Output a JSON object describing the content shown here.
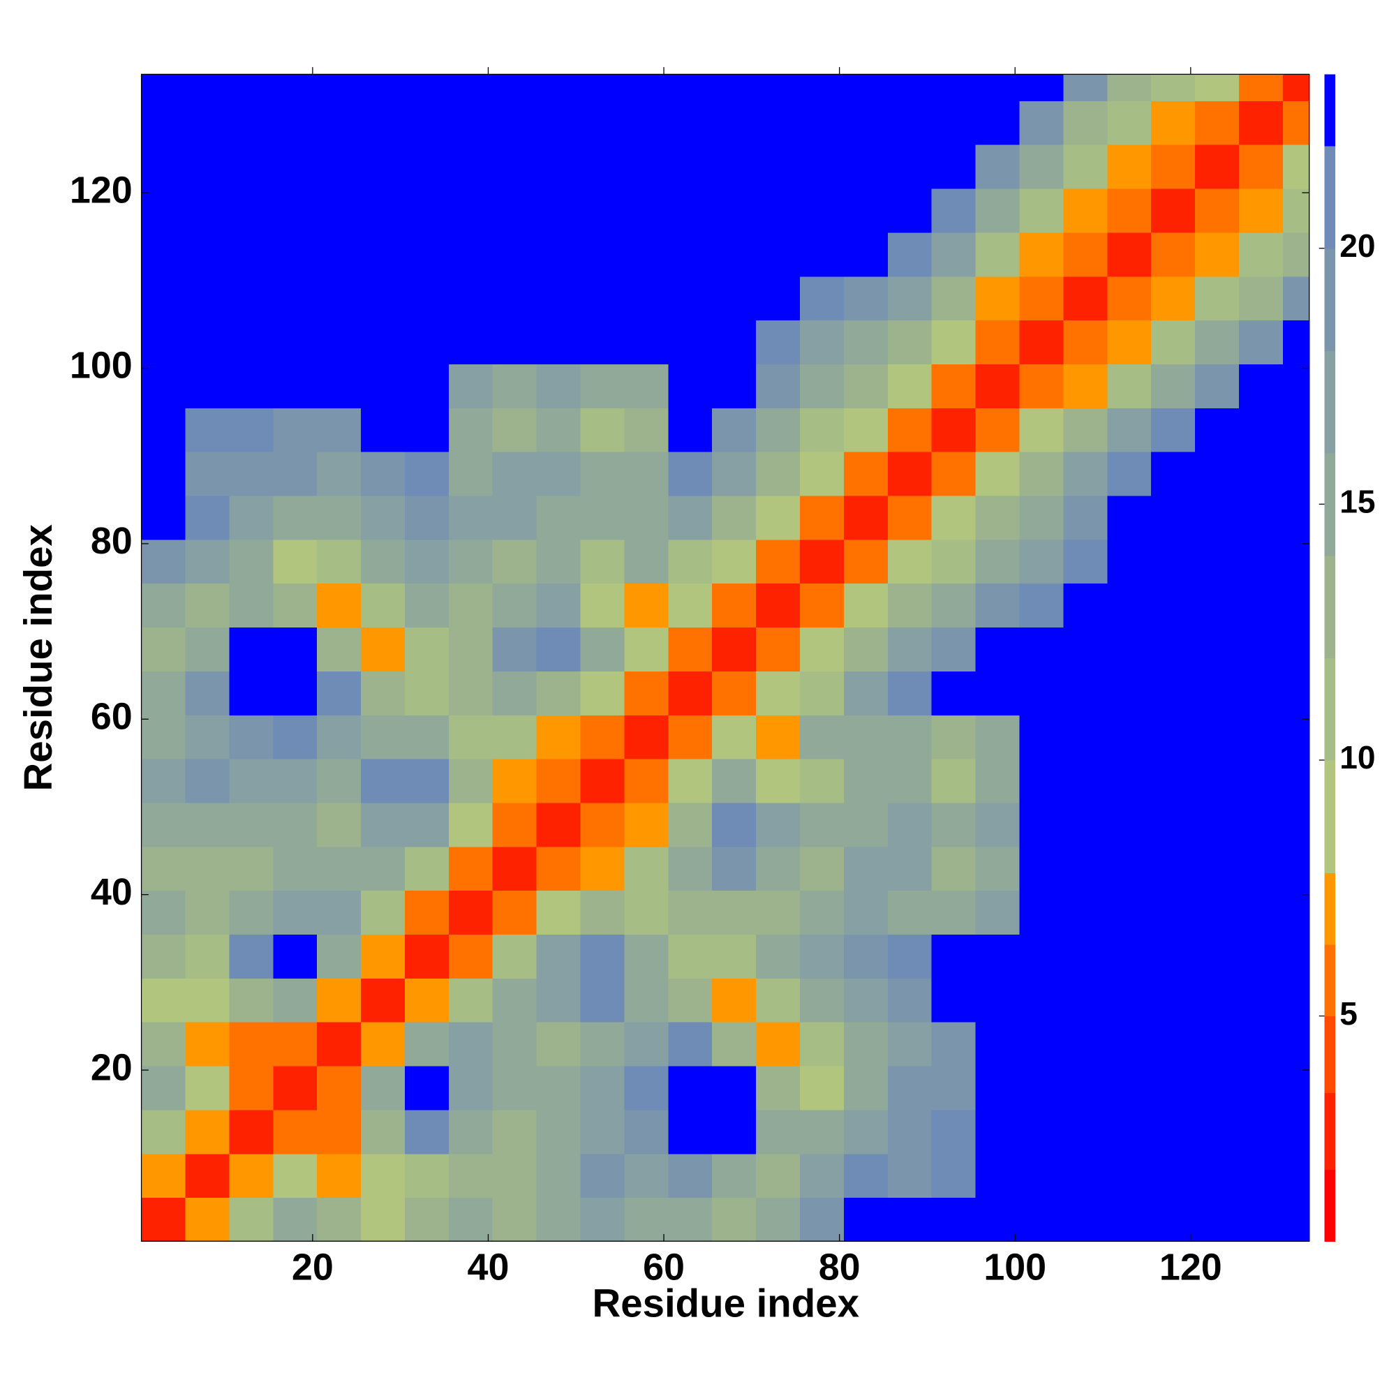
{
  "chart_data": {
    "type": "heatmap",
    "xlabel": "Residue index",
    "ylabel": "Residue index",
    "xbins": [
      0.5,
      5.5,
      10.5,
      15.5,
      20.5,
      25.5,
      30.5,
      35.5,
      40.5,
      45.5,
      50.5,
      55.5,
      60.5,
      65.5,
      70.5,
      75.5,
      80.5,
      85.5,
      90.5,
      95.5,
      100.5,
      105.5,
      110.5,
      115.5,
      120.5,
      125.5,
      130.5,
      133.5
    ],
    "ybins": [
      0.5,
      5.5,
      10.5,
      15.5,
      20.5,
      25.5,
      30.5,
      35.5,
      40.5,
      45.5,
      50.5,
      55.5,
      60.5,
      65.5,
      70.5,
      75.5,
      80.5,
      85.5,
      90.5,
      95.5,
      100.5,
      105.5,
      110.5,
      115.5,
      120.5,
      125.5,
      130.5,
      133.5
    ],
    "xlim": [
      0.5,
      133.5
    ],
    "ylim": [
      0.5,
      133.5
    ],
    "xticks": [
      20,
      40,
      60,
      80,
      100,
      120
    ],
    "yticks": [
      20,
      40,
      60,
      80,
      100,
      120
    ],
    "z": [
      [
        3,
        7,
        11,
        14,
        12,
        8,
        12,
        14,
        12,
        14,
        17,
        15,
        14,
        12,
        14,
        19,
        22,
        25,
        25,
        25,
        25,
        25,
        25,
        25,
        25,
        25,
        25
      ],
      [
        7,
        3,
        7,
        9,
        7,
        8,
        11,
        12,
        13,
        15,
        18,
        17,
        19,
        14,
        13,
        16,
        20,
        19,
        21,
        25,
        25,
        25,
        25,
        25,
        25,
        25,
        25
      ],
      [
        11,
        7,
        3,
        6,
        6,
        12,
        20,
        15,
        13,
        14,
        16,
        19,
        25,
        24,
        15,
        14,
        17,
        19,
        21,
        25,
        25,
        25,
        25,
        25,
        25,
        25,
        25
      ],
      [
        14,
        9,
        6,
        3,
        6,
        14,
        22,
        16,
        14,
        15,
        17,
        20,
        25,
        25,
        13,
        8,
        14,
        18,
        18,
        25,
        25,
        25,
        25,
        25,
        25,
        25,
        25
      ],
      [
        12,
        7,
        6,
        6,
        3,
        7,
        14,
        17,
        14,
        13,
        14,
        16,
        20,
        12,
        7,
        11,
        15,
        17,
        18,
        25,
        25,
        25,
        25,
        25,
        25,
        25,
        25
      ],
      [
        8,
        8,
        12,
        14,
        7,
        3,
        7,
        11,
        15,
        17,
        20,
        15,
        12,
        7,
        11,
        15,
        17,
        19,
        22,
        25,
        25,
        25,
        25,
        25,
        25,
        25,
        25
      ],
      [
        12,
        11,
        20,
        22,
        14,
        7,
        3,
        6,
        10,
        17,
        20,
        14,
        11,
        11,
        14,
        16,
        19,
        21,
        22,
        25,
        25,
        25,
        25,
        25,
        25,
        25,
        25
      ],
      [
        14,
        12,
        15,
        16,
        17,
        11,
        6,
        3,
        6,
        8,
        12,
        11,
        13,
        13,
        12,
        14,
        16,
        15,
        14,
        17,
        25,
        25,
        25,
        25,
        25,
        25,
        25
      ],
      [
        12,
        13,
        13,
        14,
        14,
        15,
        10,
        6,
        3,
        5,
        7,
        10,
        14,
        19,
        14,
        13,
        16,
        16,
        13,
        14,
        25,
        25,
        25,
        25,
        25,
        25,
        25
      ],
      [
        14,
        15,
        14,
        15,
        13,
        17,
        17,
        8,
        5,
        3,
        5,
        7,
        12,
        20,
        17,
        14,
        15,
        17,
        14,
        17,
        25,
        25,
        25,
        25,
        25,
        25,
        25
      ],
      [
        17,
        18,
        16,
        17,
        14,
        20,
        20,
        12,
        7,
        5,
        3,
        6,
        9,
        14,
        8,
        11,
        14,
        14,
        11,
        14,
        25,
        25,
        25,
        25,
        25,
        25,
        25
      ],
      [
        15,
        17,
        19,
        20,
        16,
        15,
        14,
        11,
        10,
        7,
        6,
        3,
        6,
        8,
        7,
        14,
        15,
        15,
        12,
        14,
        25,
        25,
        25,
        25,
        25,
        25,
        25
      ],
      [
        14,
        19,
        25,
        25,
        20,
        12,
        11,
        13,
        14,
        12,
        9,
        6,
        3,
        5,
        8,
        11,
        16,
        20,
        22,
        25,
        25,
        25,
        25,
        25,
        25,
        25,
        25
      ],
      [
        12,
        14,
        24,
        25,
        12,
        7,
        11,
        13,
        19,
        20,
        14,
        8,
        5,
        3,
        6,
        9,
        13,
        16,
        19,
        22,
        25,
        25,
        25,
        25,
        25,
        25,
        25
      ],
      [
        14,
        13,
        15,
        13,
        7,
        11,
        14,
        12,
        14,
        17,
        8,
        7,
        8,
        6,
        3,
        6,
        9,
        12,
        15,
        18,
        21,
        25,
        25,
        25,
        25,
        25,
        25
      ],
      [
        19,
        16,
        14,
        8,
        11,
        15,
        16,
        14,
        13,
        14,
        11,
        14,
        11,
        9,
        6,
        3,
        5,
        8,
        11,
        14,
        17,
        21,
        25,
        25,
        25,
        25,
        25
      ],
      [
        22,
        20,
        17,
        14,
        15,
        17,
        19,
        16,
        16,
        15,
        14,
        15,
        16,
        13,
        9,
        5,
        3,
        5,
        8,
        12,
        15,
        19,
        22,
        25,
        25,
        25,
        25
      ],
      [
        25,
        19,
        19,
        18,
        17,
        19,
        21,
        15,
        16,
        17,
        14,
        15,
        20,
        16,
        12,
        8,
        5,
        3,
        5,
        8,
        12,
        16,
        20,
        25,
        25,
        25,
        25
      ],
      [
        25,
        21,
        21,
        18,
        18,
        22,
        22,
        14,
        13,
        14,
        11,
        12,
        22,
        19,
        15,
        11,
        8,
        5,
        3,
        5,
        8,
        12,
        16,
        20,
        25,
        25,
        25
      ],
      [
        25,
        25,
        25,
        25,
        25,
        25,
        25,
        17,
        14,
        17,
        14,
        14,
        25,
        22,
        18,
        14,
        12,
        8,
        5,
        3,
        5,
        7,
        11,
        15,
        19,
        22,
        25
      ],
      [
        25,
        25,
        25,
        25,
        25,
        25,
        25,
        25,
        25,
        25,
        25,
        25,
        25,
        25,
        21,
        17,
        15,
        12,
        8,
        5,
        3,
        5,
        7,
        11,
        15,
        19,
        25
      ],
      [
        25,
        25,
        25,
        25,
        25,
        25,
        25,
        25,
        25,
        25,
        25,
        25,
        25,
        25,
        25,
        21,
        19,
        16,
        12,
        7,
        5,
        3,
        5,
        7,
        10,
        13,
        19
      ],
      [
        25,
        25,
        25,
        25,
        25,
        25,
        25,
        25,
        25,
        25,
        25,
        25,
        25,
        25,
        25,
        25,
        22,
        20,
        16,
        11,
        7,
        5,
        3,
        5,
        7,
        10,
        13
      ],
      [
        25,
        25,
        25,
        25,
        25,
        25,
        25,
        25,
        25,
        25,
        25,
        25,
        25,
        25,
        25,
        25,
        25,
        25,
        20,
        15,
        11,
        7,
        5,
        3,
        5,
        7,
        11
      ],
      [
        25,
        25,
        25,
        25,
        25,
        25,
        25,
        25,
        25,
        25,
        25,
        25,
        25,
        25,
        25,
        25,
        25,
        25,
        25,
        19,
        15,
        10,
        7,
        5,
        3,
        5,
        8
      ],
      [
        25,
        25,
        25,
        25,
        25,
        25,
        25,
        25,
        25,
        25,
        25,
        25,
        25,
        25,
        25,
        25,
        25,
        25,
        25,
        22,
        19,
        13,
        10,
        7,
        5,
        3,
        5
      ],
      [
        25,
        25,
        25,
        25,
        25,
        25,
        25,
        25,
        25,
        25,
        25,
        25,
        25,
        25,
        25,
        25,
        25,
        25,
        25,
        25,
        25,
        19,
        13,
        11,
        8,
        5,
        3
      ]
    ],
    "colorbar": {
      "zlim": [
        0.6,
        23.4
      ],
      "levels": [
        0.6,
        2,
        3.5,
        5,
        6.4,
        7.8,
        10,
        12,
        14,
        16,
        18,
        20,
        22,
        23.4
      ],
      "colors": [
        "#ff0000",
        "#ff2200",
        "#ff4a00",
        "#ff7200",
        "#ff9800",
        "#b1c57e",
        "#a6bd85",
        "#9cb38e",
        "#91a998",
        "#86a0a3",
        "#7a95ac",
        "#6e8cb5",
        "#0000ff"
      ],
      "ticks": [
        5,
        10,
        15,
        20
      ]
    }
  }
}
